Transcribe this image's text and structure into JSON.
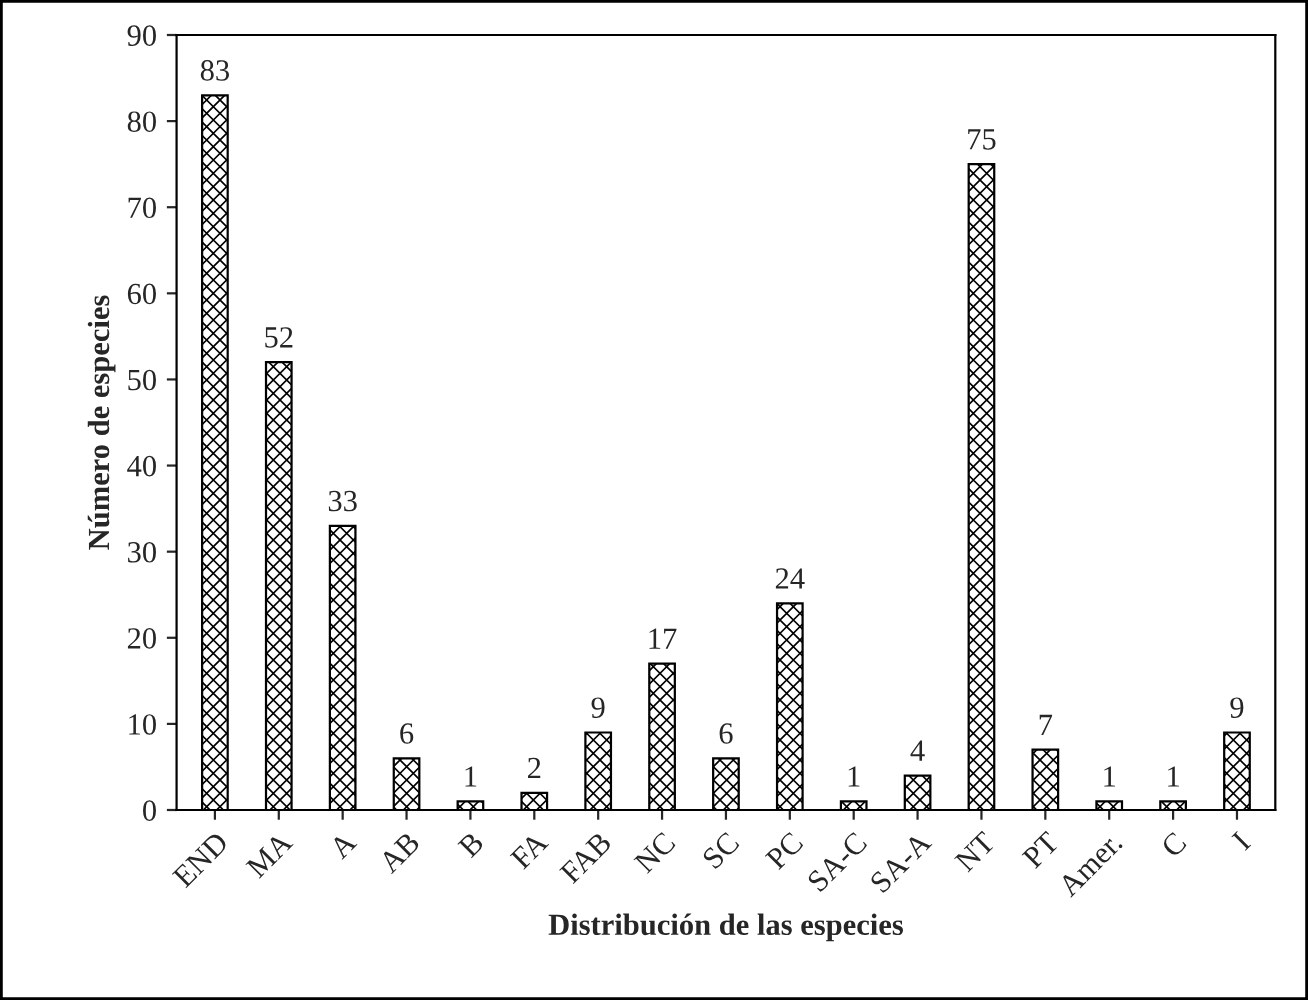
{
  "chart_data": {
    "type": "bar",
    "xlabel": "Distribución de las especies",
    "ylabel": "Número de especies",
    "categories": [
      "END",
      "MA",
      "A",
      "AB",
      "B",
      "FA",
      "FAB",
      "NC",
      "SC",
      "PC",
      "SA-C",
      "SA-A",
      "NT",
      "PT",
      "Amer.",
      "C",
      "I"
    ],
    "values": [
      83,
      52,
      33,
      6,
      1,
      2,
      9,
      17,
      6,
      24,
      1,
      4,
      75,
      7,
      1,
      1,
      9
    ],
    "color": "#000000",
    "ylim": [
      0,
      90
    ],
    "yticks": [
      0,
      10,
      20,
      30,
      40,
      50,
      60,
      70,
      80,
      90
    ],
    "data_labels": true,
    "grid": false
  }
}
